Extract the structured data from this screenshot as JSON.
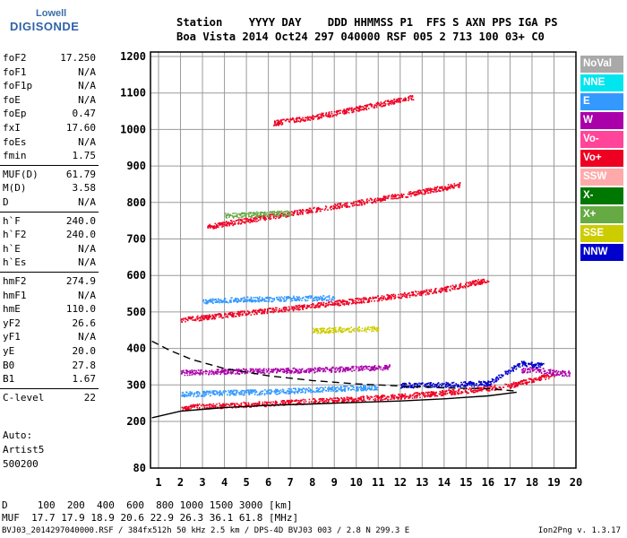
{
  "logo": {
    "line1": "Lowell",
    "line2": "DIGISONDE"
  },
  "header": {
    "line1": "Station    YYYY DAY    DDD HHMMSS P1  FFS S AXN PPS IGA PS",
    "line2": "Boa Vista 2014 Oct24 297 040000 RSF 005 2 713 100 03+ C0"
  },
  "params_groups": [
    [
      [
        "foF2",
        "17.250"
      ],
      [
        "foF1",
        "N/A"
      ],
      [
        "foF1p",
        "N/A"
      ],
      [
        "foE",
        "N/A"
      ],
      [
        "foEp",
        "0.47"
      ],
      [
        "fxI",
        "17.60"
      ],
      [
        "foEs",
        "N/A"
      ],
      [
        "fmin",
        "1.75"
      ]
    ],
    [
      [
        "MUF(D)",
        "61.79"
      ],
      [
        "M(D)",
        "3.58"
      ],
      [
        "D",
        "N/A"
      ]
    ],
    [
      [
        "h`F",
        "240.0"
      ],
      [
        "h`F2",
        "240.0"
      ],
      [
        "h`E",
        "N/A"
      ],
      [
        "h`Es",
        "N/A"
      ]
    ],
    [
      [
        "hmF2",
        "274.9"
      ],
      [
        "hmF1",
        "N/A"
      ],
      [
        "hmE",
        "110.0"
      ],
      [
        "yF2",
        "26.6"
      ],
      [
        "yF1",
        "N/A"
      ],
      [
        "yE",
        "20.0"
      ],
      [
        "B0",
        "27.8"
      ],
      [
        "B1",
        "1.67"
      ]
    ],
    [
      [
        "C-level",
        "22"
      ]
    ]
  ],
  "auto_block": [
    "Auto:",
    "Artist5",
    "500200"
  ],
  "legend": [
    {
      "label": "NoVal",
      "color": "#a9a9a9"
    },
    {
      "label": "NNE",
      "color": "#00e5ee"
    },
    {
      "label": "E",
      "color": "#3399ff"
    },
    {
      "label": "W",
      "color": "#aa00aa"
    },
    {
      "label": "Vo-",
      "color": "#ff4499"
    },
    {
      "label": "Vo+",
      "color": "#ee0022"
    },
    {
      "label": "SSW",
      "color": "#ffaaaa"
    },
    {
      "label": "X-",
      "color": "#007700"
    },
    {
      "label": "X+",
      "color": "#66aa44"
    },
    {
      "label": "SSE",
      "color": "#cccc00"
    },
    {
      "label": "NNW",
      "color": "#0000cc"
    }
  ],
  "footer": {
    "d_row": "D     100  200  400  600  800 1000 1500 3000 [km]",
    "muf_row": "MUF  17.7 17.9 18.9 20.6 22.9 26.3 36.1 61.8 [MHz]",
    "file_row": "BVJ03_2014297040000.RSF / 384fx512h 50 kHz 2.5 km / DPS-4D BVJ03 003 / 2.8 N 299.3 E",
    "version": "Ion2Png v. 1.3.17"
  },
  "chart_data": {
    "type": "scatter",
    "title": "",
    "xlabel": "",
    "ylabel": "",
    "x_ticks": [
      1,
      2,
      3,
      4,
      5,
      6,
      7,
      8,
      9,
      10,
      11,
      12,
      13,
      14,
      15,
      16,
      17,
      18,
      19,
      20
    ],
    "y_ticks": [
      80,
      200,
      300,
      400,
      500,
      600,
      700,
      800,
      900,
      1000,
      1100,
      1200
    ],
    "xlim": [
      0.7,
      20
    ],
    "ylim": [
      80,
      1200
    ],
    "grid": true,
    "traces": [
      {
        "name": "Vo+",
        "color": "#ee0022",
        "points": [
          [
            2,
            240
          ],
          [
            4,
            245
          ],
          [
            6,
            250
          ],
          [
            8,
            257
          ],
          [
            10,
            263
          ],
          [
            12,
            270
          ],
          [
            14,
            280
          ],
          [
            16,
            292
          ],
          [
            17,
            300
          ],
          [
            18,
            315
          ],
          [
            19,
            330
          ]
        ]
      },
      {
        "name": "Vo+",
        "color": "#ee0022",
        "points": [
          [
            2,
            480
          ],
          [
            4,
            492
          ],
          [
            6,
            505
          ],
          [
            8,
            518
          ],
          [
            10,
            532
          ],
          [
            12,
            546
          ],
          [
            14,
            563
          ],
          [
            16,
            590
          ]
        ]
      },
      {
        "name": "Vo+",
        "color": "#ee0022",
        "points": [
          [
            3.2,
            735
          ],
          [
            6,
            762
          ],
          [
            9,
            790
          ],
          [
            12.5,
            825
          ],
          [
            14.7,
            850
          ]
        ]
      },
      {
        "name": "Vo+",
        "color": "#ee0022",
        "points": [
          [
            6.2,
            1018
          ],
          [
            9,
            1045
          ],
          [
            12.6,
            1090
          ]
        ]
      },
      {
        "name": "E",
        "color": "#3399ff",
        "points": [
          [
            2,
            275
          ],
          [
            4,
            280
          ],
          [
            6,
            282
          ],
          [
            8,
            288
          ],
          [
            11,
            295
          ]
        ]
      },
      {
        "name": "E",
        "color": "#3399ff",
        "points": [
          [
            3,
            530
          ],
          [
            5,
            536
          ],
          [
            7,
            538
          ],
          [
            9,
            540
          ]
        ]
      },
      {
        "name": "W",
        "color": "#aa00aa",
        "points": [
          [
            2,
            335
          ],
          [
            4,
            338
          ],
          [
            6,
            340
          ],
          [
            8,
            342
          ],
          [
            10,
            346
          ],
          [
            11.5,
            350
          ]
        ]
      },
      {
        "name": "W",
        "color": "#aa00aa",
        "points": [
          [
            17.5,
            340
          ],
          [
            18,
            345
          ],
          [
            19,
            335
          ],
          [
            19.7,
            332
          ]
        ]
      },
      {
        "name": "SSE",
        "color": "#cccc00",
        "points": [
          [
            8,
            450
          ],
          [
            9,
            452
          ],
          [
            10,
            454
          ],
          [
            11,
            455
          ]
        ]
      },
      {
        "name": "X+",
        "color": "#66aa44",
        "points": [
          [
            4,
            765
          ],
          [
            5,
            768
          ],
          [
            6,
            770
          ],
          [
            7,
            772
          ]
        ]
      },
      {
        "name": "NNW",
        "color": "#0000cc",
        "points": [
          [
            12,
            300
          ],
          [
            14,
            302
          ],
          [
            16,
            306
          ],
          [
            17.5,
            360
          ],
          [
            18.5,
            355
          ]
        ]
      },
      {
        "name": "fitted profile (solid)",
        "color": "#000000",
        "points": [
          [
            0.7,
            210
          ],
          [
            2,
            228
          ],
          [
            4,
            238
          ],
          [
            6,
            244
          ],
          [
            8,
            248
          ],
          [
            10,
            252
          ],
          [
            12,
            256
          ],
          [
            14,
            262
          ],
          [
            16,
            270
          ],
          [
            17.3,
            280
          ]
        ]
      },
      {
        "name": "fitted profile (dashed)",
        "color": "#000000",
        "points": [
          [
            0.7,
            420
          ],
          [
            1.5,
            395
          ],
          [
            2.5,
            370
          ],
          [
            4,
            345
          ],
          [
            6,
            325
          ],
          [
            8,
            312
          ],
          [
            10,
            303
          ],
          [
            12,
            297
          ],
          [
            14,
            292
          ],
          [
            16,
            290
          ],
          [
            17.3,
            283
          ]
        ]
      }
    ]
  }
}
